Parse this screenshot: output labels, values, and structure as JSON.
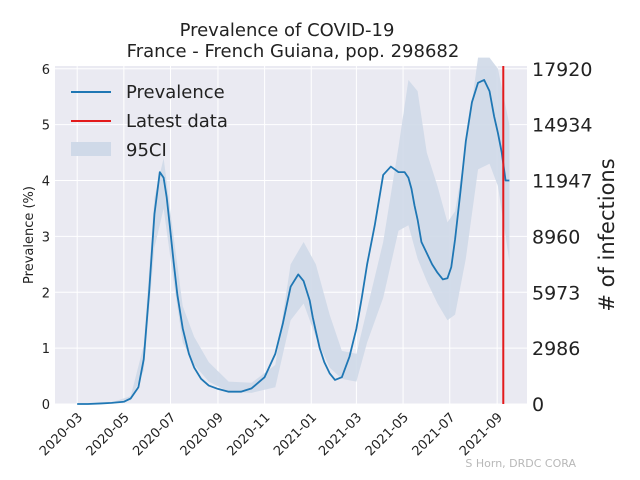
{
  "chart_data": {
    "type": "line",
    "title": "Prevalence of COVID-19",
    "subtitle": "France - French Guiana, pop. 298682",
    "ylabel": "Prevalence (%)",
    "ylabel_right": "# of infections",
    "ylim": [
      0,
      6.05
    ],
    "yticks": [
      "0",
      "1",
      "2",
      "3",
      "4",
      "5",
      "6"
    ],
    "yticks_right": [
      "0",
      "2986",
      "5973",
      "8960",
      "11947",
      "14934",
      "17920"
    ],
    "x_ticks": [
      "2020-03",
      "2020-05",
      "2020-07",
      "2020-09",
      "2020-11",
      "2021-01",
      "2021-03",
      "2021-05",
      "2021-07",
      "2021-09"
    ],
    "xlim": [
      "2020-02-01",
      "2021-10-10"
    ],
    "grid": true,
    "legend_position": "top-left",
    "legend": [
      "Prevalence",
      "Latest data",
      "95CI"
    ],
    "colors": {
      "line": "#1f77b4",
      "latest": "#e31a1c",
      "band": "#cfd9e8",
      "background": "#eaeaf2"
    },
    "latest_data_date": "2021-09-09",
    "series": [
      {
        "name": "Prevalence",
        "x": [
          "2020-03-01",
          "2020-03-15",
          "2020-04-01",
          "2020-04-15",
          "2020-05-01",
          "2020-05-10",
          "2020-05-20",
          "2020-05-27",
          "2020-06-03",
          "2020-06-10",
          "2020-06-17",
          "2020-06-22",
          "2020-06-26",
          "2020-06-30",
          "2020-07-05",
          "2020-07-10",
          "2020-07-17",
          "2020-07-25",
          "2020-08-01",
          "2020-08-10",
          "2020-08-20",
          "2020-09-01",
          "2020-09-15",
          "2020-10-01",
          "2020-10-15",
          "2020-11-01",
          "2020-11-15",
          "2020-11-25",
          "2020-12-05",
          "2020-12-15",
          "2020-12-22",
          "2020-12-30",
          "2021-01-03",
          "2021-01-07",
          "2021-01-12",
          "2021-01-18",
          "2021-01-25",
          "2021-02-01",
          "2021-02-10",
          "2021-02-20",
          "2021-03-01",
          "2021-03-08",
          "2021-03-15",
          "2021-03-25",
          "2021-04-05",
          "2021-04-15",
          "2021-04-25",
          "2021-05-03",
          "2021-05-08",
          "2021-05-12",
          "2021-05-16",
          "2021-05-20",
          "2021-05-25",
          "2021-06-01",
          "2021-06-08",
          "2021-06-15",
          "2021-06-22",
          "2021-06-28",
          "2021-07-03",
          "2021-07-08",
          "2021-07-15",
          "2021-07-22",
          "2021-07-30",
          "2021-08-07",
          "2021-08-15",
          "2021-08-22",
          "2021-08-28",
          "2021-09-02",
          "2021-09-07",
          "2021-09-12",
          "2021-09-17"
        ],
        "values": [
          0,
          0,
          0.01,
          0.02,
          0.04,
          0.1,
          0.3,
          0.8,
          2.0,
          3.4,
          4.15,
          4.05,
          3.7,
          3.2,
          2.55,
          1.95,
          1.35,
          0.9,
          0.65,
          0.45,
          0.33,
          0.27,
          0.22,
          0.22,
          0.28,
          0.48,
          0.9,
          1.45,
          2.1,
          2.32,
          2.2,
          1.85,
          1.55,
          1.3,
          1.0,
          0.75,
          0.55,
          0.43,
          0.48,
          0.85,
          1.35,
          1.9,
          2.5,
          3.2,
          4.1,
          4.25,
          4.15,
          4.15,
          4.05,
          3.85,
          3.55,
          3.3,
          2.9,
          2.7,
          2.5,
          2.35,
          2.23,
          2.25,
          2.45,
          2.95,
          3.8,
          4.7,
          5.4,
          5.75,
          5.8,
          5.6,
          5.15,
          4.85,
          4.5,
          4.0,
          4.0
        ]
      },
      {
        "name": "95CI",
        "x": [
          "2020-03-01",
          "2020-04-15",
          "2020-05-10",
          "2020-05-27",
          "2020-06-10",
          "2020-06-22",
          "2020-07-05",
          "2020-07-17",
          "2020-08-01",
          "2020-08-20",
          "2020-09-15",
          "2020-10-15",
          "2020-11-15",
          "2020-12-05",
          "2020-12-22",
          "2021-01-07",
          "2021-01-25",
          "2021-02-10",
          "2021-03-01",
          "2021-03-15",
          "2021-04-05",
          "2021-04-25",
          "2021-05-08",
          "2021-05-20",
          "2021-06-01",
          "2021-06-15",
          "2021-06-28",
          "2021-07-08",
          "2021-07-22",
          "2021-08-07",
          "2021-08-22",
          "2021-09-02",
          "2021-09-17"
        ],
        "lower": [
          0,
          0.01,
          0.07,
          0.6,
          2.8,
          3.5,
          2.2,
          1.1,
          0.7,
          0.4,
          0.22,
          0.2,
          0.3,
          1.5,
          1.8,
          1.2,
          0.65,
          0.45,
          0.4,
          1.1,
          1.9,
          3.1,
          3.2,
          2.6,
          2.2,
          1.8,
          1.5,
          1.6,
          2.6,
          4.2,
          4.3,
          3.9,
          2.55
        ],
        "upper": [
          0,
          0.03,
          0.14,
          1.05,
          3.7,
          4.4,
          3.0,
          1.75,
          1.2,
          0.75,
          0.4,
          0.38,
          0.7,
          2.5,
          2.9,
          2.5,
          1.6,
          0.95,
          0.9,
          1.7,
          2.9,
          4.6,
          5.8,
          5.6,
          4.5,
          3.9,
          3.25,
          3.45,
          4.6,
          6.2,
          6.2,
          6.0,
          5.0
        ]
      }
    ]
  },
  "credit": "S Horn, DRDC CORA"
}
